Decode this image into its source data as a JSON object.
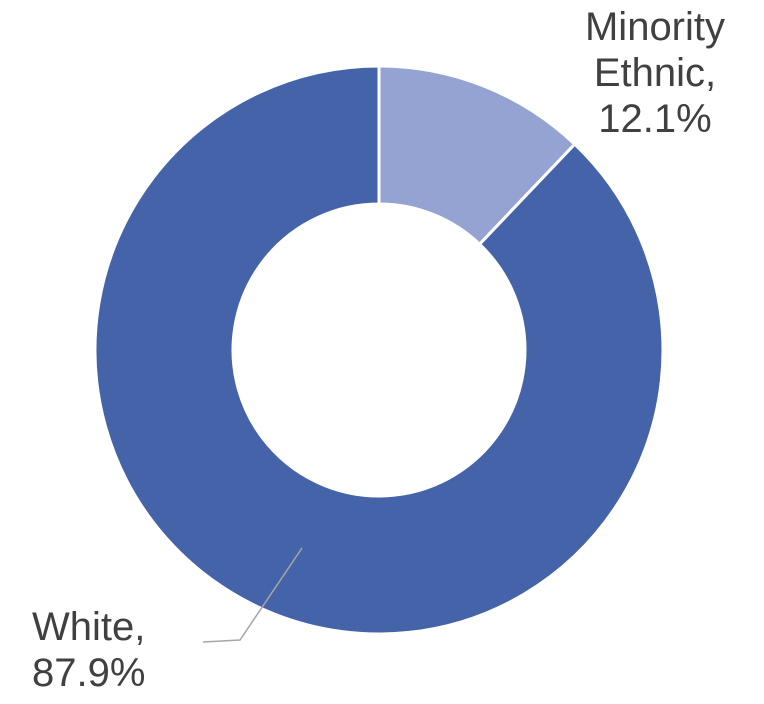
{
  "chart_data": {
    "type": "pie",
    "variant": "donut",
    "categories": [
      "Minority Ethnic",
      "White"
    ],
    "values": [
      12.1,
      87.9
    ],
    "unit": "%",
    "colors": [
      "#95a3d2",
      "#4463a8"
    ],
    "labels": [
      {
        "lines": [
          "Minority",
          "Ethnic,",
          "12.1%"
        ]
      },
      {
        "lines": [
          "White,",
          "87.9%"
        ]
      }
    ]
  }
}
